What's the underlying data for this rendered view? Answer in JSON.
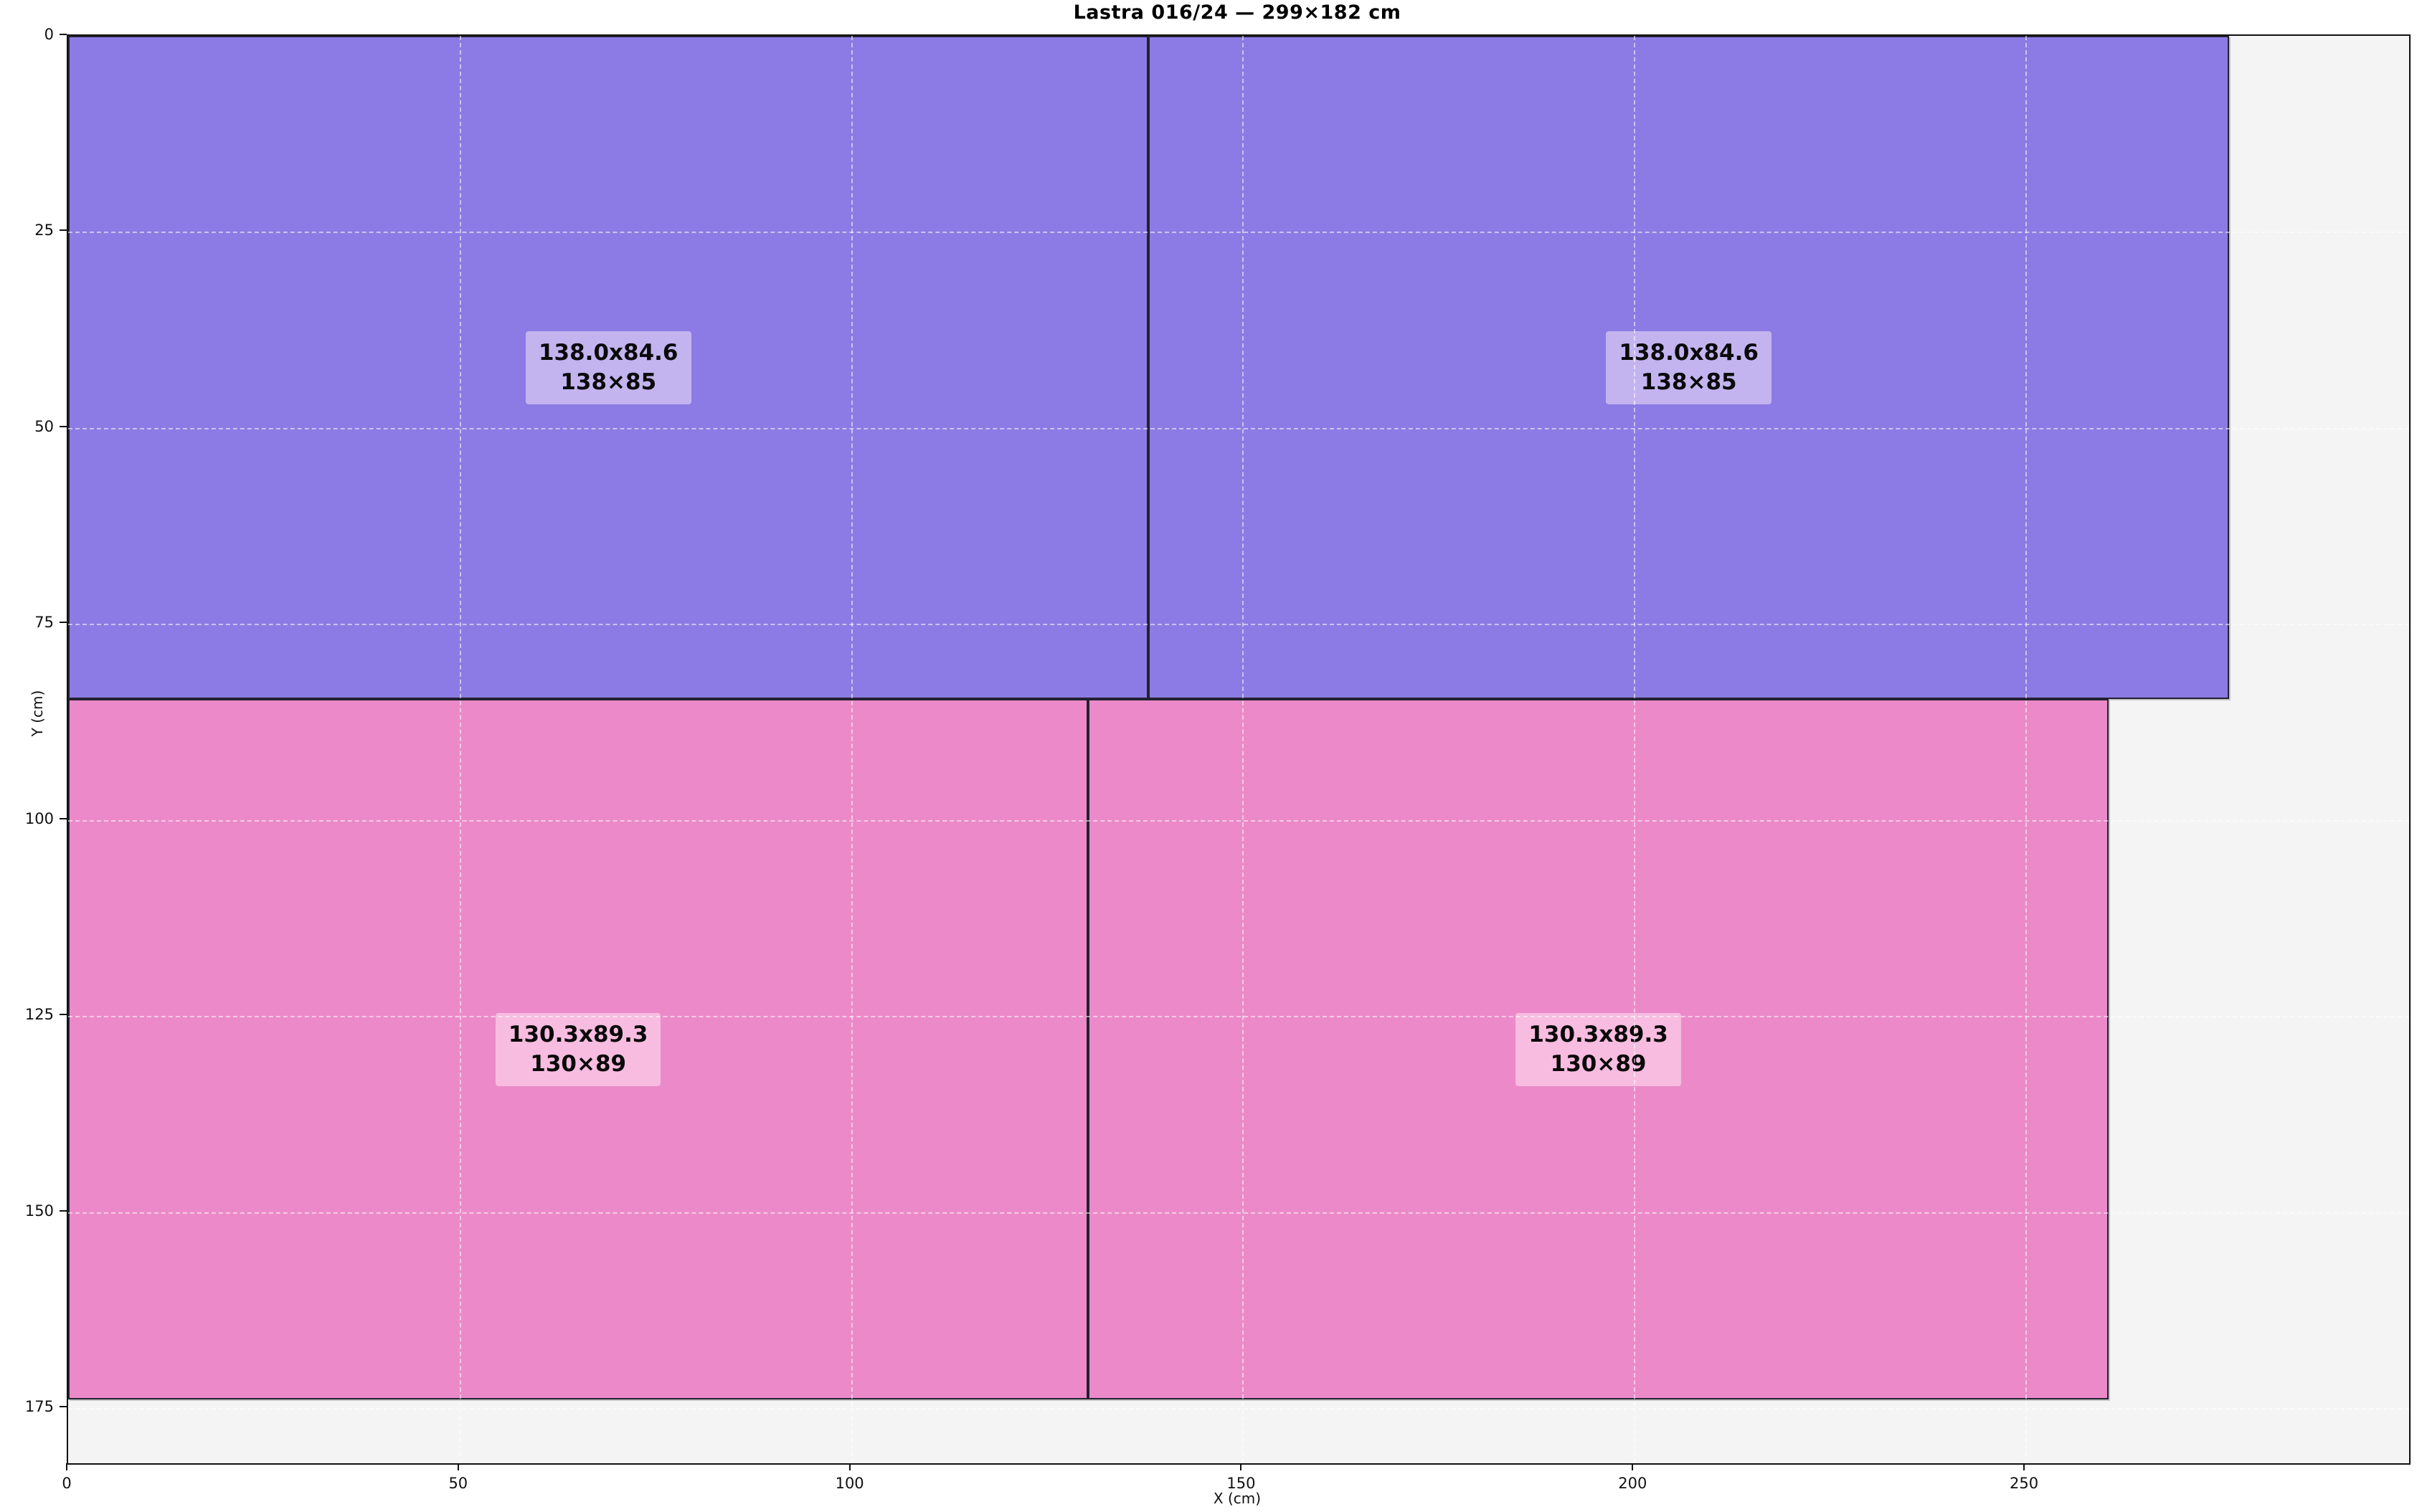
{
  "title": "Lastra 016/24 — 299×182 cm",
  "chart_data": {
    "type": "rect-layout",
    "title": "Lastra 016/24 — 299×182 cm",
    "xlabel": "X (cm)",
    "ylabel": "Y (cm)",
    "xlim": [
      0,
      299
    ],
    "ylim": [
      0,
      182
    ],
    "y_inverted": true,
    "x_ticks": [
      0,
      50,
      100,
      150,
      200,
      250
    ],
    "y_ticks": [
      0,
      25,
      50,
      75,
      100,
      125,
      150,
      175
    ],
    "grid": {
      "on": true,
      "style": "dashed",
      "color": "rgba(255,255,255,0.55)"
    },
    "sheet": {
      "id": "016/24",
      "width_cm": 299,
      "height_cm": 182,
      "bg_color": "#f4f4f4"
    },
    "colors": {
      "purple_fill": "#8c7be4",
      "purple_label_bg": "#c3b4f0",
      "pink_fill": "#ec8ac9",
      "pink_label_bg": "#f7bce0",
      "piece_border": "#222230",
      "spine": "#111111"
    },
    "pieces": [
      {
        "x": 0,
        "y": 0,
        "w": 138.0,
        "h": 84.6,
        "fill": "#8c7be4",
        "label_bg": "#c3b4f0",
        "label_line1": "138.0x84.6",
        "label_line2": "138×85"
      },
      {
        "x": 138.0,
        "y": 0,
        "w": 138.0,
        "h": 84.6,
        "fill": "#8c7be4",
        "label_bg": "#c3b4f0",
        "label_line1": "138.0x84.6",
        "label_line2": "138×85"
      },
      {
        "x": 0,
        "y": 84.6,
        "w": 130.3,
        "h": 89.3,
        "fill": "#ec8ac9",
        "label_bg": "#f7bce0",
        "label_line1": "130.3x89.3",
        "label_line2": "130×89"
      },
      {
        "x": 130.3,
        "y": 84.6,
        "w": 130.3,
        "h": 89.3,
        "fill": "#ec8ac9",
        "label_bg": "#f7bce0",
        "label_line1": "130.3x89.3",
        "label_line2": "130×89"
      }
    ]
  }
}
